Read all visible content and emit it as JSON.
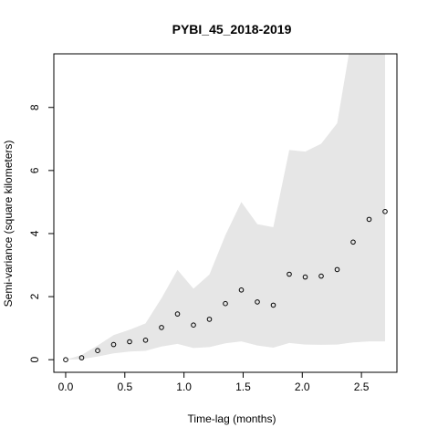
{
  "chart_data": {
    "type": "scatter",
    "title": "PYBI_45_2018-2019",
    "xlabel": "Time-lag (months)",
    "ylabel": "Semi-variance (square kilometers)",
    "xlim": [
      -0.1,
      2.8
    ],
    "ylim": [
      -0.4,
      9.7
    ],
    "xticks": [
      0.0,
      0.5,
      1.0,
      1.5,
      2.0,
      2.5
    ],
    "xtick_labels": [
      "0.0",
      "0.5",
      "1.0",
      "1.5",
      "2.0",
      "2.5"
    ],
    "yticks": [
      0,
      2,
      4,
      6,
      8
    ],
    "ytick_labels": [
      "0",
      "2",
      "4",
      "6",
      "8"
    ],
    "grid": false,
    "band_color": "#e6e6e6",
    "point_style": "open-circle",
    "points": {
      "x": [
        0.0,
        0.135,
        0.27,
        0.405,
        0.54,
        0.675,
        0.81,
        0.945,
        1.08,
        1.215,
        1.35,
        1.485,
        1.62,
        1.755,
        1.89,
        2.025,
        2.16,
        2.295,
        2.43,
        2.565,
        2.7
      ],
      "y": [
        0.0,
        0.06,
        0.29,
        0.48,
        0.57,
        0.62,
        1.02,
        1.45,
        1.1,
        1.28,
        1.78,
        2.21,
        1.83,
        1.73,
        2.71,
        2.62,
        2.65,
        2.86,
        3.73,
        4.45,
        4.7
      ]
    },
    "confidence_band": {
      "x": [
        0.0,
        0.135,
        0.27,
        0.405,
        0.54,
        0.675,
        0.81,
        0.945,
        1.08,
        1.215,
        1.35,
        1.485,
        1.62,
        1.755,
        1.89,
        2.025,
        2.16,
        2.295,
        2.43,
        2.565,
        2.7
      ],
      "upper": [
        0.0,
        0.15,
        0.45,
        0.78,
        0.95,
        1.15,
        1.95,
        2.85,
        2.25,
        2.7,
        3.95,
        5.0,
        4.3,
        4.2,
        6.65,
        6.6,
        6.85,
        7.5,
        10.5,
        11.5,
        12.0
      ],
      "lower": [
        0.0,
        0.02,
        0.1,
        0.2,
        0.26,
        0.28,
        0.42,
        0.5,
        0.37,
        0.4,
        0.52,
        0.58,
        0.45,
        0.38,
        0.53,
        0.48,
        0.47,
        0.48,
        0.55,
        0.58,
        0.58
      ]
    }
  }
}
